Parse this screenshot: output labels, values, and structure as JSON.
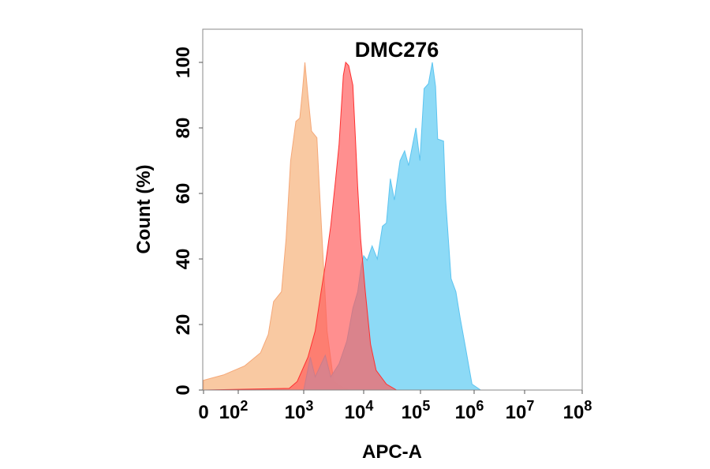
{
  "chart_data": {
    "type": "area",
    "title": "DMC276",
    "xlabel": "APC-A",
    "ylabel": "Count  (%)",
    "x_scale": "biexponential (log with zero)",
    "xlim": [
      0,
      100000000
    ],
    "ylim": [
      0,
      110
    ],
    "x_ticks": [
      {
        "value": 0,
        "base": "0",
        "exp": ""
      },
      {
        "value": 100,
        "base": "10",
        "exp": "2"
      },
      {
        "value": 1000,
        "base": "10",
        "exp": "3"
      },
      {
        "value": 10000,
        "base": "10",
        "exp": "4"
      },
      {
        "value": 100000,
        "base": "10",
        "exp": "5"
      },
      {
        "value": 1000000,
        "base": "10",
        "exp": "6"
      },
      {
        "value": 10000000,
        "base": "10",
        "exp": "7"
      },
      {
        "value": 100000000,
        "base": "10",
        "exp": "8"
      }
    ],
    "y_ticks": [
      "0",
      "20",
      "40",
      "60",
      "80",
      "100"
    ],
    "grid": false,
    "series": [
      {
        "color": "#f9c9a2",
        "stroke": "#f5a878",
        "x": [
          0,
          57,
          126,
          219,
          288,
          347,
          457,
          537,
          631,
          759,
          871,
          955,
          1047,
          1175,
          1349,
          1660,
          1820,
          2138,
          2455,
          3162,
          4786,
          6000
        ],
        "y": [
          3,
          4.6,
          7.4,
          11.4,
          17,
          27,
          30,
          46,
          70,
          82,
          83,
          91,
          100,
          90,
          79,
          77,
          62,
          38,
          18,
          2.6,
          0.5,
          0
        ]
      },
      {
        "color": "#87d8f6",
        "stroke": "#5cc4f0",
        "x": [
          0,
          1000,
          1290,
          1550,
          2290,
          2820,
          3890,
          5250,
          6610,
          7940,
          9120,
          10000,
          11500,
          14100,
          17400,
          21400,
          25100,
          29500,
          34700,
          43700,
          52500,
          61700,
          83200,
          97700,
          117000,
          141000,
          166000,
          191000,
          209000,
          269000,
          295000,
          372000,
          457000,
          550000,
          692000,
          912000,
          1350000
        ],
        "y": [
          0,
          0,
          10,
          4,
          10.6,
          4,
          8,
          15,
          25,
          30,
          38,
          41,
          39.6,
          44,
          40,
          50,
          51,
          64.5,
          58,
          70,
          73,
          68.5,
          80,
          70,
          92,
          93.5,
          100,
          92.7,
          76.6,
          76,
          58,
          34,
          30,
          22,
          13,
          1.8,
          0
        ]
      },
      {
        "color": "#ff5a5a",
        "stroke": "#ff3030",
        "x": [
          0,
          600,
          794,
          1175,
          1550,
          1950,
          2290,
          2820,
          3390,
          3890,
          4570,
          5010,
          5620,
          6610,
          7240,
          7940,
          8910,
          10700,
          13200,
          16600,
          25100,
          38000
        ],
        "y": [
          0,
          0.5,
          2.6,
          10,
          18,
          30,
          38,
          50,
          64,
          75,
          96,
          100,
          99,
          93,
          78,
          62,
          46,
          30,
          14,
          6,
          1.8,
          0
        ]
      }
    ]
  }
}
